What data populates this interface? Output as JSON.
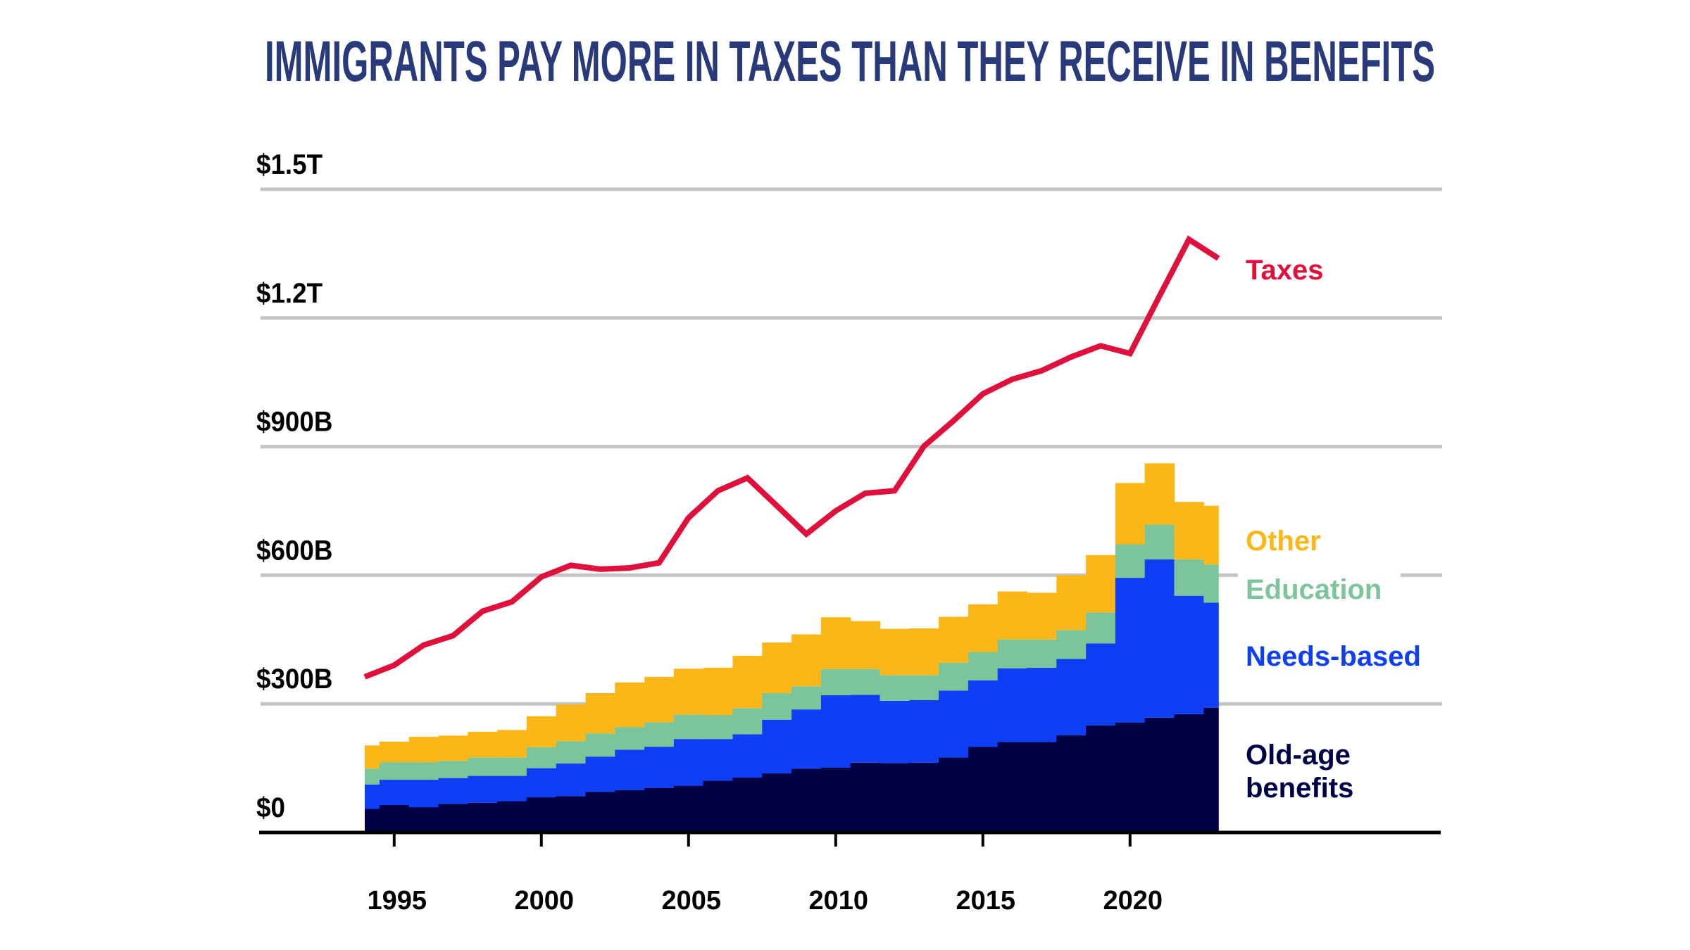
{
  "chart_data": {
    "type": "bar",
    "subtype": "stacked-step-area with line overlay",
    "title": "IMMIGRANTS PAY MORE IN TAXES THAN THEY RECEIVE IN BENEFITS",
    "xlabel": "",
    "ylabel": "",
    "ylim": [
      0,
      1500
    ],
    "units": "billions USD",
    "y_ticks": [
      {
        "value": 0,
        "label": "$0"
      },
      {
        "value": 300,
        "label": "$300B"
      },
      {
        "value": 600,
        "label": "$600B"
      },
      {
        "value": 900,
        "label": "$900B"
      },
      {
        "value": 1200,
        "label": "$1.2T"
      },
      {
        "value": 1500,
        "label": "$1.5T"
      }
    ],
    "x_ticks": [
      {
        "value": 1995,
        "label": "1995"
      },
      {
        "value": 2000,
        "label": "2000"
      },
      {
        "value": 2005,
        "label": "2005"
      },
      {
        "value": 2010,
        "label": "2010"
      },
      {
        "value": 2015,
        "label": "2015"
      },
      {
        "value": 2020,
        "label": "2020"
      }
    ],
    "grid": true,
    "x": [
      1994,
      1995,
      1996,
      1997,
      1998,
      1999,
      2000,
      2001,
      2002,
      2003,
      2004,
      2005,
      2006,
      2007,
      2008,
      2009,
      2010,
      2011,
      2012,
      2013,
      2014,
      2015,
      2016,
      2017,
      2018,
      2019,
      2020,
      2021,
      2022,
      2023
    ],
    "series": [
      {
        "name": "Old-age benefits",
        "label_lines": [
          "Old-age",
          "benefits"
        ],
        "color": "#000046",
        "kind": "stack",
        "values": [
          55,
          64,
          59,
          67,
          69,
          73,
          82,
          85,
          95,
          99,
          104,
          109,
          121,
          128,
          138,
          149,
          151,
          163,
          162,
          163,
          175,
          200,
          211,
          211,
          227,
          250,
          256,
          268,
          276,
          291
        ]
      },
      {
        "name": "Needs-based",
        "color": "#0f3ff5",
        "kind": "stack",
        "values": [
          57,
          59,
          64,
          60,
          63,
          59,
          68,
          76,
          82,
          94,
          96,
          109,
          97,
          101,
          125,
          138,
          169,
          158,
          145,
          146,
          156,
          155,
          172,
          173,
          178,
          191,
          338,
          369,
          276,
          245
        ]
      },
      {
        "name": "Education",
        "color": "#7cc59a",
        "kind": "stack",
        "values": [
          37,
          41,
          41,
          40,
          43,
          43,
          49,
          52,
          54,
          53,
          57,
          57,
          56,
          61,
          62,
          54,
          61,
          60,
          60,
          58,
          65,
          66,
          67,
          66,
          67,
          72,
          78,
          81,
          85,
          89
        ]
      },
      {
        "name": "Other",
        "color": "#fbb718",
        "kind": "stack",
        "values": [
          54,
          48,
          59,
          59,
          60,
          64,
          72,
          86,
          94,
          104,
          106,
          107,
          110,
          122,
          118,
          121,
          121,
          112,
          108,
          109,
          107,
          111,
          112,
          109,
          128,
          134,
          143,
          143,
          134,
          137
        ]
      },
      {
        "name": "Taxes",
        "color": "#e0103c",
        "kind": "line",
        "values": [
          363,
          390,
          437,
          459,
          516,
          538,
          596,
          623,
          614,
          617,
          629,
          734,
          797,
          827,
          762,
          696,
          750,
          791,
          797,
          901,
          960,
          1023,
          1057,
          1077,
          1109,
          1135,
          1117,
          1251,
          1383,
          1339
        ]
      }
    ],
    "legend": "right, inline labels",
    "title_color": "#283a7a",
    "grid_color": "#c4c4c4"
  }
}
